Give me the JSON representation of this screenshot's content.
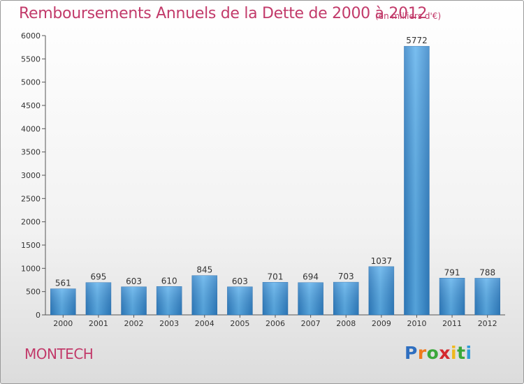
{
  "chart_data": {
    "type": "bar",
    "title": "Remboursements Annuels de la Dette de 2000 à 2012",
    "subtitle": "(en milliers d'€)",
    "categories": [
      "2000",
      "2001",
      "2002",
      "2003",
      "2004",
      "2005",
      "2006",
      "2007",
      "2008",
      "2009",
      "2010",
      "2011",
      "2012"
    ],
    "values": [
      561,
      695,
      603,
      610,
      845,
      603,
      701,
      694,
      703,
      1037,
      5772,
      791,
      788
    ],
    "ylim": [
      0,
      6000
    ],
    "yticks": [
      0,
      500,
      1000,
      1500,
      2000,
      2500,
      3000,
      3500,
      4000,
      4500,
      5000,
      5500,
      6000
    ],
    "xlabel": "",
    "ylabel": "",
    "grid": false,
    "bar_color": "#3d94d8",
    "bar_color_light": "#5fb0ea"
  },
  "commune": "MONTECH",
  "brand": {
    "letters": [
      "P",
      "r",
      "o",
      "x",
      "i",
      "t",
      "i"
    ],
    "colors": [
      "#2f6fc0",
      "#f07a1c",
      "#3aa83a",
      "#d4292e",
      "#f0b81c",
      "#3aa83a",
      "#2f9ad8"
    ]
  },
  "colors": {
    "title": "#c23a6a"
  }
}
